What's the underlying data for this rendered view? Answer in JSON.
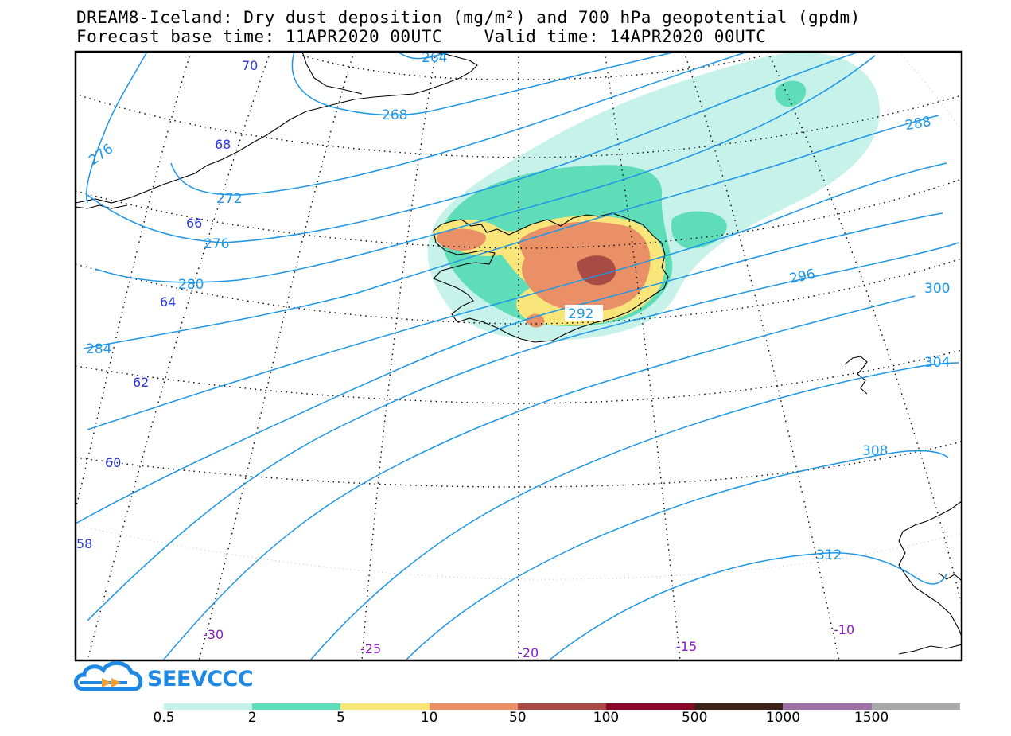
{
  "header": {
    "title_line1": "DREAM8-Iceland: Dry dust deposition (mg/m²) and 700 hPa geopotential (gpdm)",
    "title_line2": "Forecast base time: 11APR2020 00UTC    Valid time: 14APR2020 00UTC"
  },
  "logo": {
    "text": "SEEVCCC"
  },
  "colors": {
    "contour": "#1E96E6",
    "lat_label": "#2A38D8",
    "lon_label": "#8A1AC8",
    "coast": "#000000",
    "frame": "#000000"
  },
  "colorbar": {
    "labels": [
      "0.5",
      "2",
      "5",
      "10",
      "50",
      "100",
      "500",
      "1000",
      "1500"
    ],
    "colors": [
      "#C6F2EA",
      "#5EDDB8",
      "#F8E67A",
      "#E99067",
      "#A84B45",
      "#850A2A",
      "#3A2218",
      "#A070A8",
      "#A8A8A8"
    ]
  },
  "map": {
    "contour_labels": [
      "264",
      "268",
      "272",
      "276",
      "276",
      "280",
      "284",
      "288",
      "292",
      "296",
      "300",
      "304",
      "308",
      "312"
    ],
    "latitude_labels": [
      "70",
      "68",
      "66",
      "64",
      "62",
      "60",
      "58"
    ],
    "longitude_labels": [
      "-30",
      "-25",
      "-20",
      "-15",
      "-10"
    ]
  }
}
